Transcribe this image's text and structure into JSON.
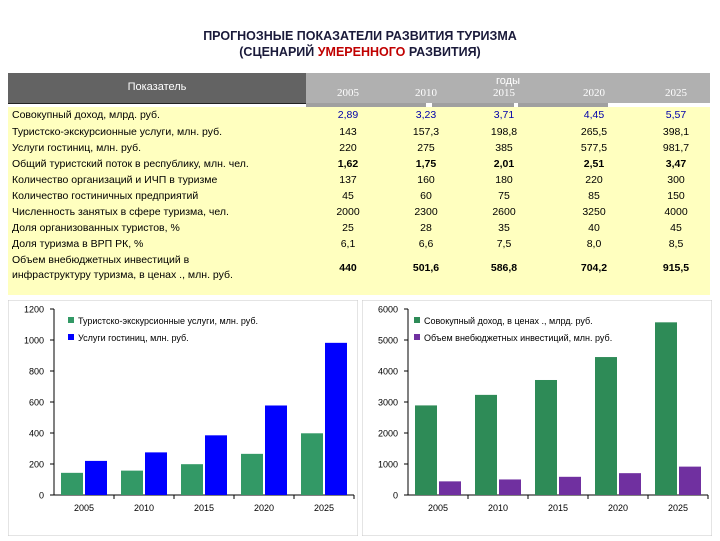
{
  "title": {
    "line1": "ПРОГНОЗНЫЕ ПОКАЗАТЕЛИ РАЗВИТИЯ ТУРИЗМА",
    "line2_pre": "(СЦЕНАРИЙ ",
    "line2_hl": "УМЕРЕННОГО",
    "line2_post": " РАЗВИТИЯ)"
  },
  "table": {
    "header_left": "Показатель",
    "header_group": "годы",
    "years": [
      "2005",
      "2010",
      "2015",
      "2020",
      "2025"
    ],
    "rows": [
      {
        "label": "Совокупный доход, млрд. руб.",
        "values": [
          "2,89",
          "3,23",
          "3,71",
          "4,45",
          "5,57"
        ],
        "style": "blue"
      },
      {
        "label": "Туристско-экскурсионные услуги, млн. руб.",
        "values": [
          "143",
          "157,3",
          "198,8",
          "265,5",
          "398,1"
        ],
        "style": ""
      },
      {
        "label": "Услуги гостиниц, млн. руб.",
        "values": [
          "220",
          "275",
          "385",
          "577,5",
          "981,7"
        ],
        "style": ""
      },
      {
        "label": "Общий туристский поток в республику, млн. чел.",
        "values": [
          "1,62",
          "1,75",
          "2,01",
          "2,51",
          "3,47"
        ],
        "style": "bold"
      },
      {
        "label": "Количество организаций и ИЧП в туризме",
        "values": [
          "137",
          "160",
          "180",
          "220",
          "300"
        ],
        "style": ""
      },
      {
        "label": "Количество гостиничных предприятий",
        "values": [
          "45",
          "60",
          "75",
          "85",
          "150"
        ],
        "style": ""
      },
      {
        "label": "Численность занятых в сфере туризма, чел.",
        "values": [
          "2000",
          "2300",
          "2600",
          "3250",
          "4000"
        ],
        "style": ""
      },
      {
        "label": "Доля организованных туристов, %",
        "values": [
          "25",
          "28",
          "35",
          "40",
          "45"
        ],
        "style": ""
      },
      {
        "label": "Доля туризма в ВРП РК, %",
        "values": [
          "6,1",
          "6,6",
          "7,5",
          "8,0",
          "8,5"
        ],
        "style": ""
      },
      {
        "label1": "Объем внебюджетных инвестиций в",
        "label2": "инфраструктуру туризма, в ценах ., млн. руб.",
        "values": [
          "440",
          "501,6",
          "586,8",
          "704,2",
          "915,5"
        ],
        "style": "bold"
      }
    ]
  },
  "chart_data": [
    {
      "type": "bar",
      "categories": [
        "2005",
        "2010",
        "2015",
        "2020",
        "2025"
      ],
      "series": [
        {
          "name": "Туристско-экскурсионные услуги, млн. руб.",
          "values": [
            143,
            157.3,
            198.8,
            265.5,
            398.1
          ],
          "color": "#339966"
        },
        {
          "name": "Услуги гостиниц, млн. руб.",
          "values": [
            220,
            275,
            385,
            577.5,
            981.7
          ],
          "color": "#0000ff"
        }
      ],
      "ylim": [
        0,
        1200
      ],
      "yticks": [
        "0",
        "200",
        "400",
        "600",
        "800",
        "1000",
        "1200"
      ],
      "legend": "top-left",
      "grid": false
    },
    {
      "type": "bar",
      "categories": [
        "2005",
        "2010",
        "2015",
        "2020",
        "2025"
      ],
      "series": [
        {
          "name": "Совокупный доход, в ценах ., млрд. руб.",
          "values": [
            2890,
            3230,
            3710,
            4450,
            5570
          ],
          "color": "#2e8b57"
        },
        {
          "name": "Объем внебюджетных инвестиций, млн. руб.",
          "values": [
            440,
            501.6,
            586.8,
            704.2,
            915.5
          ],
          "color": "#7030a0"
        }
      ],
      "ylim": [
        0,
        6000
      ],
      "yticks": [
        "0",
        "1000",
        "2000",
        "3000",
        "4000",
        "5000",
        "6000"
      ],
      "legend": "top-left",
      "grid": false
    }
  ]
}
